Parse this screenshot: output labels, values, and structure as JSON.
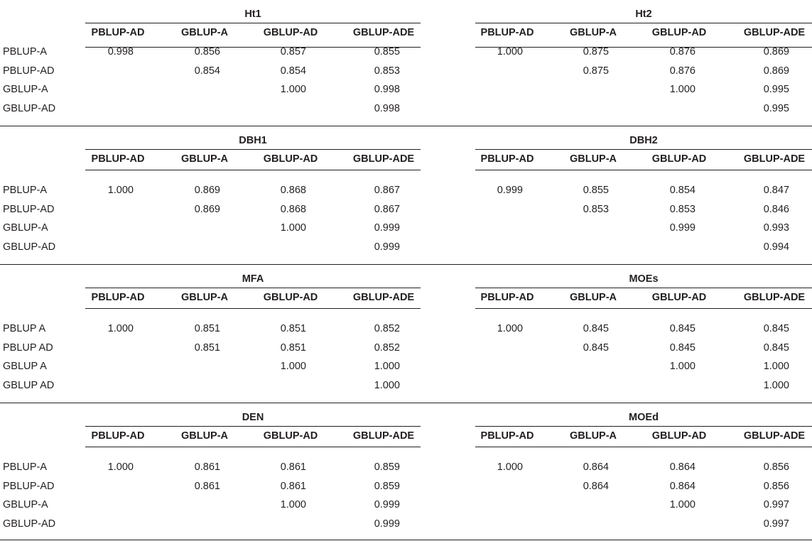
{
  "columns": [
    "PBLUP-AD",
    "GBLUP-A",
    "GBLUP-AD",
    "GBLUP-ADE"
  ],
  "blocks": [
    {
      "left": {
        "trait": "Ht1",
        "rows": [
          "PBLUP-A",
          "PBLUP-AD",
          "GBLUP-A",
          "GBLUP-AD"
        ],
        "values": [
          [
            "0.998",
            "0.856",
            "0.857",
            "0.855"
          ],
          [
            "",
            "0.854",
            "0.854",
            "0.853"
          ],
          [
            "",
            "",
            "1.000",
            "0.998"
          ],
          [
            "",
            "",
            "",
            "0.998"
          ]
        ]
      },
      "right": {
        "trait": "Ht2",
        "values": [
          [
            "1.000",
            "0.875",
            "0.876",
            "0.869"
          ],
          [
            "",
            "0.875",
            "0.876",
            "0.869"
          ],
          [
            "",
            "",
            "1.000",
            "0.995"
          ],
          [
            "",
            "",
            "",
            "0.995"
          ]
        ]
      }
    },
    {
      "left": {
        "trait": "DBH1",
        "rows": [
          "PBLUP-A",
          "PBLUP-AD",
          "GBLUP-A",
          "GBLUP-AD"
        ],
        "values": [
          [
            "1.000",
            "0.869",
            "0.868",
            "0.867"
          ],
          [
            "",
            "0.869",
            "0.868",
            "0.867"
          ],
          [
            "",
            "",
            "1.000",
            "0.999"
          ],
          [
            "",
            "",
            "",
            "0.999"
          ]
        ]
      },
      "right": {
        "trait": "DBH2",
        "values": [
          [
            "0.999",
            "0.855",
            "0.854",
            "0.847"
          ],
          [
            "",
            "0.853",
            "0.853",
            "0.846"
          ],
          [
            "",
            "",
            "0.999",
            "0.993"
          ],
          [
            "",
            "",
            "",
            "0.994"
          ]
        ]
      }
    },
    {
      "left": {
        "trait": "MFA",
        "rows": [
          "PBLUP A",
          "PBLUP AD",
          "GBLUP A",
          "GBLUP AD"
        ],
        "values": [
          [
            "1.000",
            "0.851",
            "0.851",
            "0.852"
          ],
          [
            "",
            "0.851",
            "0.851",
            "0.852"
          ],
          [
            "",
            "",
            "1.000",
            "1.000"
          ],
          [
            "",
            "",
            "",
            "1.000"
          ]
        ]
      },
      "right": {
        "trait": "MOEs",
        "values": [
          [
            "1.000",
            "0.845",
            "0.845",
            "0.845"
          ],
          [
            "",
            "0.845",
            "0.845",
            "0.845"
          ],
          [
            "",
            "",
            "1.000",
            "1.000"
          ],
          [
            "",
            "",
            "",
            "1.000"
          ]
        ]
      }
    },
    {
      "left": {
        "trait": "DEN",
        "rows": [
          "PBLUP-A",
          "PBLUP-AD",
          "GBLUP-A",
          "GBLUP-AD"
        ],
        "values": [
          [
            "1.000",
            "0.861",
            "0.861",
            "0.859"
          ],
          [
            "",
            "0.861",
            "0.861",
            "0.859"
          ],
          [
            "",
            "",
            "1.000",
            "0.999"
          ],
          [
            "",
            "",
            "",
            "0.999"
          ]
        ]
      },
      "right": {
        "trait": "MOEd",
        "values": [
          [
            "1.000",
            "0.864",
            "0.864",
            "0.856"
          ],
          [
            "",
            "0.864",
            "0.864",
            "0.856"
          ],
          [
            "",
            "",
            "1.000",
            "0.997"
          ],
          [
            "",
            "",
            "",
            "0.997"
          ]
        ]
      }
    }
  ]
}
